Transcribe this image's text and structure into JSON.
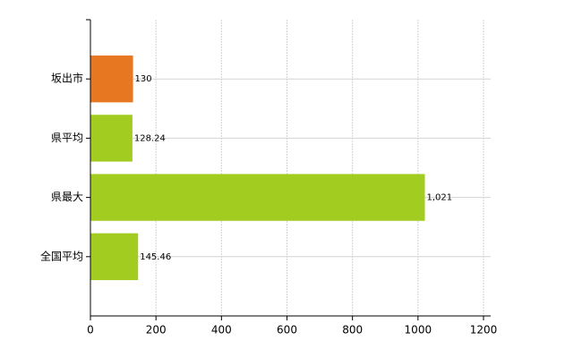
{
  "chart_data": {
    "type": "barh",
    "categories": [
      "坂出市",
      "県平均",
      "県最大",
      "全国平均"
    ],
    "values": [
      130,
      128.24,
      1021,
      145.46
    ],
    "value_labels": [
      "130",
      "128.24",
      "1,021",
      "145.46"
    ],
    "colors": [
      "#e87722",
      "#a2cc20",
      "#a2cc20",
      "#a2cc20"
    ],
    "xlim": [
      0,
      1200
    ],
    "xticks": [
      0,
      200,
      400,
      600,
      800,
      1000,
      1200
    ],
    "grid": true
  }
}
